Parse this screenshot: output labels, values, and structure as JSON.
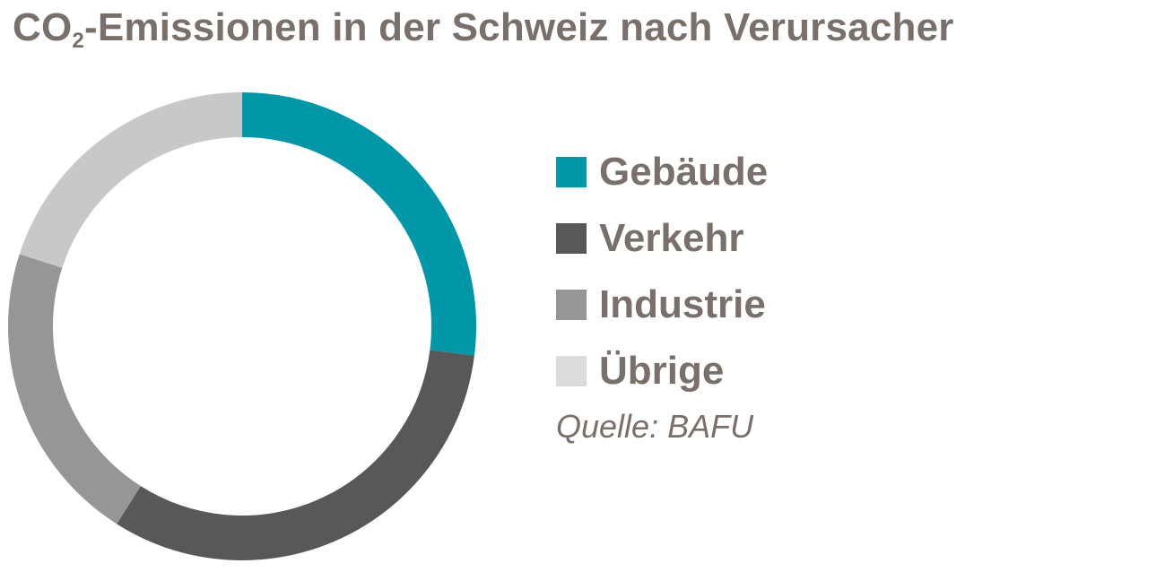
{
  "title": {
    "prefix": "CO",
    "subscript": "2",
    "suffix": "-Emissionen in der Schweiz nach Verursacher"
  },
  "source": "Quelle: BAFU",
  "chart_data": {
    "type": "pie",
    "variant": "donut",
    "categories": [
      "Gebäude",
      "Verkehr",
      "Industrie",
      "Übrige"
    ],
    "values": [
      27,
      32,
      21,
      20
    ],
    "unit": "%",
    "colors": [
      "#0097a9",
      "#585858",
      "#969696",
      "#c8c8c8"
    ],
    "legend": [
      {
        "label": "Gebäude",
        "color": "#0097a9"
      },
      {
        "label": "Verkehr",
        "color": "#585858"
      },
      {
        "label": "Industrie",
        "color": "#969696"
      },
      {
        "label": "Übrige",
        "color": "#dcdcdc"
      }
    ],
    "legend_position": "right"
  }
}
